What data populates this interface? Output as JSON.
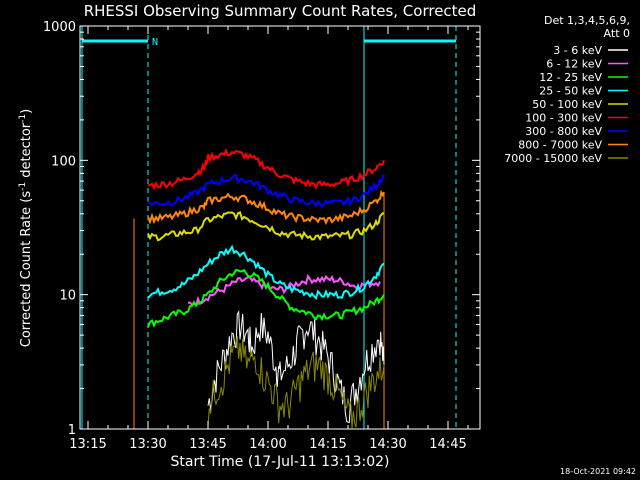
{
  "chart_data": {
    "type": "line",
    "title": "RHESSI Observing Summary Count Rates, Corrected",
    "xlabel": "Start Time (17-Jul-11 13:13:02)",
    "ylabel_main": "Corrected Count Rate (s",
    "ylabel_sup1": "-1",
    "ylabel_mid": " detector",
    "ylabel_sup2": "-1",
    "ylabel_end": ")",
    "y_scale": "log",
    "ylim": [
      1,
      1000
    ],
    "y_ticks": [
      1,
      10,
      100,
      1000
    ],
    "y_tick_labels": [
      "1",
      "10",
      "100",
      "1000"
    ],
    "xlim_minutes": [
      793,
      893
    ],
    "x_ticks_minutes": [
      795,
      810,
      825,
      840,
      855,
      870,
      885
    ],
    "x_tick_labels": [
      "13:15",
      "13:30",
      "13:45",
      "14:00",
      "14:15",
      "14:30",
      "14:45"
    ],
    "footer_date": "18-Oct-2021 09:42",
    "night_marker": "N",
    "legend": {
      "header1": "Det 1,3,4,5,6,9,",
      "header2": "Att 0",
      "position": "top-right"
    },
    "series": [
      {
        "name": "3 - 6 keV",
        "color": "#ffffff",
        "x": [
          825,
          827,
          829,
          831,
          833,
          835,
          836,
          838,
          840,
          842,
          843,
          845,
          847,
          848,
          850,
          852,
          854,
          856,
          858,
          860,
          862,
          864,
          866,
          868,
          869
        ],
        "y": [
          1.5,
          2.5,
          3.5,
          5,
          6,
          5,
          4,
          6,
          5,
          3,
          2.5,
          3,
          4,
          5,
          6,
          5,
          4,
          3,
          2,
          1.5,
          2,
          3,
          4,
          5,
          3
        ]
      },
      {
        "name": "6 - 12 keV",
        "color": "#ff55ff",
        "x": [
          820,
          823,
          826,
          829,
          832,
          835,
          838,
          841,
          844,
          847,
          850,
          853,
          856,
          859,
          862,
          865,
          868
        ],
        "y": [
          8.5,
          9,
          10,
          11,
          12.5,
          13,
          12,
          11,
          11,
          12,
          13,
          13,
          13,
          12.5,
          11.5,
          12,
          12.5
        ]
      },
      {
        "name": "12 - 25 keV",
        "color": "#00ff00",
        "x": [
          810,
          813,
          816,
          819,
          822,
          825,
          828,
          831,
          834,
          837,
          840,
          843,
          846,
          849,
          852,
          855,
          858,
          861,
          864,
          867,
          869
        ],
        "y": [
          6,
          6.5,
          7,
          7.5,
          8.5,
          10,
          12.5,
          14.5,
          15,
          13.5,
          11.5,
          9.5,
          8,
          7.5,
          7,
          7,
          7,
          7.5,
          8,
          9,
          10
        ]
      },
      {
        "name": "25 - 50 keV",
        "color": "#00ffff",
        "x": [
          810,
          813,
          816,
          819,
          822,
          825,
          828,
          831,
          834,
          837,
          840,
          843,
          846,
          849,
          852,
          855,
          858,
          861,
          864,
          867,
          869
        ],
        "y": [
          10,
          10.5,
          11,
          12,
          14,
          17,
          20,
          22,
          20,
          17,
          14,
          12,
          11,
          10.5,
          10,
          10,
          10,
          10.5,
          11.5,
          14,
          17
        ]
      },
      {
        "name": "50 - 100 keV",
        "color": "#dddd00",
        "x": [
          810,
          813,
          816,
          819,
          822,
          825,
          828,
          831,
          834,
          837,
          840,
          843,
          846,
          849,
          852,
          855,
          858,
          861,
          864,
          867,
          869
        ],
        "y": [
          27,
          27,
          28,
          29,
          30,
          36,
          38,
          40,
          38,
          35,
          32,
          29,
          28,
          27.5,
          27,
          27,
          27.5,
          28,
          30,
          34,
          40
        ]
      },
      {
        "name": "100 - 300 keV",
        "color": "#ff0000",
        "x": [
          810,
          813,
          816,
          819,
          822,
          824,
          825,
          828,
          831,
          834,
          837,
          840,
          843,
          846,
          849,
          852,
          855,
          858,
          861,
          864,
          867,
          869
        ],
        "y": [
          65,
          66,
          68,
          72,
          80,
          88,
          105,
          110,
          115,
          110,
          100,
          88,
          78,
          72,
          68,
          66,
          66,
          68,
          72,
          78,
          88,
          100
        ]
      },
      {
        "name": "300 - 800 keV",
        "color": "#0000ff",
        "x": [
          810,
          813,
          816,
          819,
          822,
          825,
          828,
          831,
          834,
          837,
          840,
          843,
          846,
          849,
          852,
          855,
          858,
          861,
          864,
          867,
          869
        ],
        "y": [
          48,
          48,
          49,
          52,
          57,
          66,
          70,
          74,
          72,
          67,
          60,
          55,
          51,
          49,
          48,
          48,
          48,
          50,
          55,
          65,
          78
        ]
      },
      {
        "name": "800 - 7000 keV",
        "color": "#ff8800",
        "x": [
          810,
          813,
          816,
          819,
          822,
          824,
          825,
          828,
          831,
          834,
          837,
          840,
          843,
          846,
          849,
          852,
          855,
          858,
          861,
          864,
          867,
          869
        ],
        "y": [
          37,
          37,
          38,
          40,
          43,
          45,
          50,
          52,
          54,
          52,
          48,
          44,
          40,
          38,
          37,
          36,
          36,
          37,
          39,
          43,
          50,
          58
        ]
      },
      {
        "name": "7000 - 15000 keV",
        "color": "#888800",
        "x": [
          825,
          827,
          829,
          831,
          833,
          835,
          837,
          839,
          841,
          843,
          845,
          847,
          849,
          851,
          853,
          855,
          857,
          859,
          861,
          863,
          865,
          867,
          869
        ],
        "y": [
          1.5,
          2,
          2.5,
          3.5,
          4,
          3,
          3.5,
          2.5,
          2,
          1.5,
          1.5,
          2,
          2.5,
          3,
          3,
          2.5,
          2,
          1.5,
          1.2,
          1.5,
          2,
          2.5,
          3
        ]
      }
    ]
  }
}
